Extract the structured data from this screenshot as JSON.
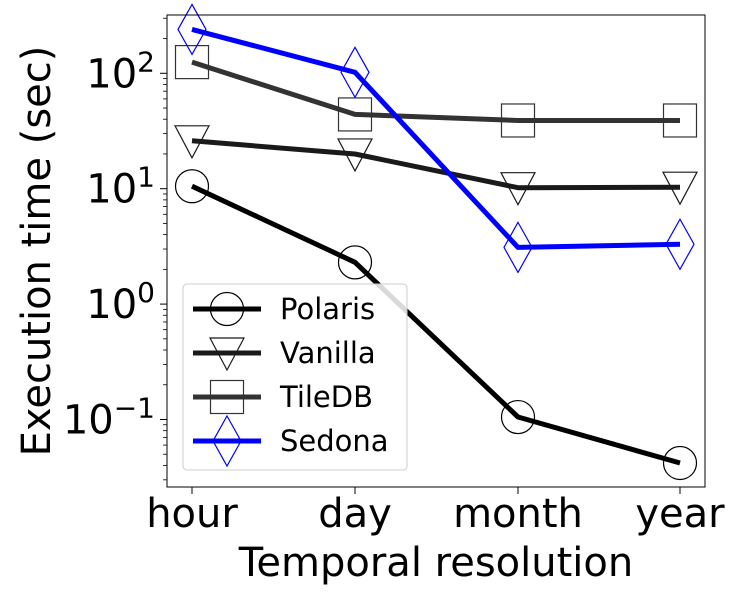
{
  "chart_data": {
    "type": "line",
    "xlabel": "Temporal resolution",
    "ylabel": "Execution time (sec)",
    "yscale": "log",
    "ylim": [
      0.026,
      320
    ],
    "categories": [
      "hour",
      "day",
      "month",
      "year"
    ],
    "y_ticks": [
      {
        "value": 0.1,
        "exp": "−1"
      },
      {
        "value": 1,
        "exp": "0"
      },
      {
        "value": 10,
        "exp": "1"
      },
      {
        "value": 100,
        "exp": "2"
      }
    ],
    "tick_base": "10",
    "grid": false,
    "legend_position": "lower-left",
    "series": [
      {
        "name": "Polaris",
        "values": [
          10.5,
          2.3,
          0.105,
          0.042
        ],
        "color": "#000000",
        "marker": "circle"
      },
      {
        "name": "Vanilla",
        "values": [
          26,
          20,
          10.2,
          10.3
        ],
        "color": "#1a1a1a",
        "marker": "triangle-down"
      },
      {
        "name": "TileDB",
        "values": [
          125,
          44,
          39,
          39
        ],
        "color": "#333333",
        "marker": "square"
      },
      {
        "name": "Sedona",
        "values": [
          240,
          102,
          3.1,
          3.3
        ],
        "color": "#0000ff",
        "marker": "diamond"
      }
    ]
  }
}
